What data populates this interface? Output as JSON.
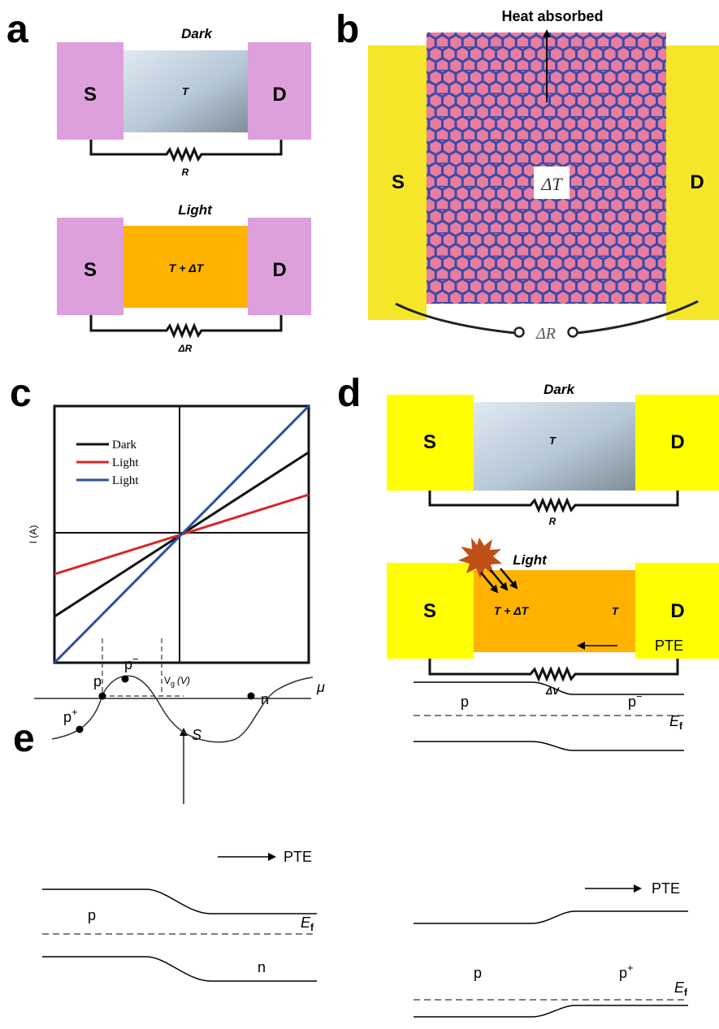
{
  "panels": {
    "a": {
      "label": "a",
      "top": {
        "title": "Dark",
        "source": "S",
        "drain": "D",
        "channel": "T",
        "resistor": "R"
      },
      "bottom": {
        "title": "Light",
        "source": "S",
        "drain": "D",
        "channel": "T + ΔT",
        "resistor": "ΔR"
      }
    },
    "b": {
      "label": "b",
      "heat": "Heat absorbed",
      "source": "S",
      "drain": "D",
      "channel": "ΔT",
      "resistor": "ΔR"
    },
    "c": {
      "label": "c",
      "ylabel": "I (A)",
      "xlabel_main": "V",
      "xlabel_sub": "g",
      "xlabel_unit": "(V)",
      "legend": [
        {
          "name": "Dark",
          "color": "#111111"
        },
        {
          "name": "Light",
          "color": "#d62728"
        },
        {
          "name": "Light",
          "color": "#2b4fa0"
        }
      ]
    },
    "d": {
      "label": "d",
      "top": {
        "title": "Dark",
        "source": "S",
        "drain": "D",
        "channel": "T",
        "resistor": "R"
      },
      "bottom": {
        "title": "Light",
        "source": "S",
        "drain": "D",
        "channel_hot": "T + ΔT",
        "channel_cold": "T",
        "resistor": "ΔV"
      }
    },
    "e": {
      "label": "e",
      "curve": {
        "yaxis": "S",
        "xaxis": "μ",
        "pts": [
          "p",
          "p",
          "p",
          "n"
        ],
        "pplus_sup": "+",
        "pminus_sup": "−"
      },
      "diag1": {
        "arrow": "PTE",
        "left": "p",
        "right": "p",
        "right_sup": "−",
        "ef": "E",
        "ef_sub": "f"
      },
      "diag2": {
        "arrow": "PTE",
        "left": "p",
        "right": "n",
        "ef": "E",
        "ef_sub": "f"
      },
      "diag3": {
        "arrow": "PTE",
        "left": "p",
        "right": "p",
        "right_sup": "+",
        "ef": "E",
        "ef_sub": "f"
      }
    }
  },
  "colors": {
    "pink_contact": "#dda0dd",
    "yellow_contact": "#ffff00",
    "b_contact": "#f5e62a",
    "orange_channel": "#ffb300",
    "graphene_fill": "#e97d9f",
    "graphene_edge": "#3a4aa8",
    "dark_line": "#111111",
    "red_line": "#d62728",
    "blue_line": "#2b4fa0",
    "flash": "#c0501a"
  },
  "chart_data": {
    "type": "line",
    "xlabel": "Vg (V)",
    "ylabel": "I (A)",
    "xlim": [
      -1,
      1
    ],
    "ylim": [
      -1,
      1
    ],
    "series": [
      {
        "name": "Dark",
        "x": [
          -1,
          1
        ],
        "y": [
          -0.64,
          0.64
        ]
      },
      {
        "name": "Light",
        "x": [
          -1,
          1
        ],
        "y": [
          -0.31,
          0.31
        ]
      },
      {
        "name": "Light",
        "x": [
          -1,
          1
        ],
        "y": [
          -1,
          1
        ]
      }
    ]
  }
}
